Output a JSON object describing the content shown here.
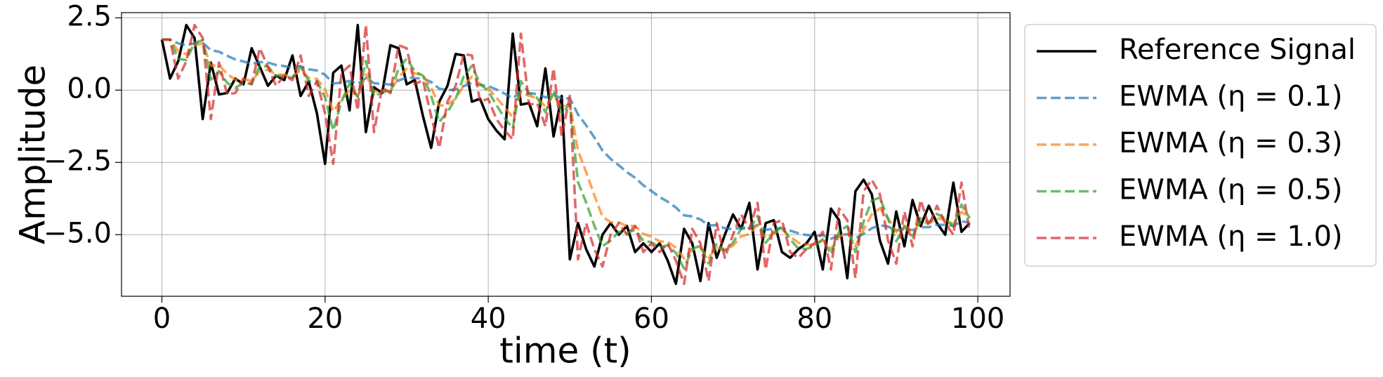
{
  "chart_data": {
    "type": "line",
    "xlabel": "time (t)",
    "ylabel": "Amplitude",
    "x": [
      0,
      1,
      2,
      3,
      4,
      5,
      6,
      7,
      8,
      9,
      10,
      11,
      12,
      13,
      14,
      15,
      16,
      17,
      18,
      19,
      20,
      21,
      22,
      23,
      24,
      25,
      26,
      27,
      28,
      29,
      30,
      31,
      32,
      33,
      34,
      35,
      36,
      37,
      38,
      39,
      40,
      41,
      42,
      43,
      44,
      45,
      46,
      47,
      48,
      49,
      50,
      51,
      52,
      53,
      54,
      55,
      56,
      57,
      58,
      59,
      60,
      61,
      62,
      63,
      64,
      65,
      66,
      67,
      68,
      69,
      70,
      71,
      72,
      73,
      74,
      75,
      76,
      77,
      78,
      79,
      80,
      81,
      82,
      83,
      84,
      85,
      86,
      87,
      88,
      89,
      90,
      91,
      92,
      93,
      94,
      95,
      96,
      97,
      98,
      99
    ],
    "series": [
      {
        "name": "Reference Signal",
        "color": "#000000",
        "linestyle": "solid",
        "values": [
          1.75,
          0.4,
          1.0,
          2.25,
          1.8,
          -1.0,
          0.95,
          -0.15,
          -0.1,
          0.4,
          0.2,
          1.45,
          0.8,
          0.15,
          0.5,
          0.35,
          1.2,
          -0.2,
          0.3,
          -0.8,
          -2.55,
          0.6,
          0.85,
          -0.7,
          2.25,
          -1.45,
          0.1,
          -0.1,
          1.55,
          1.45,
          0.2,
          0.35,
          -0.9,
          -2.0,
          -0.4,
          0.15,
          1.25,
          1.2,
          -0.4,
          -0.3,
          -1.0,
          -1.4,
          -1.7,
          1.95,
          -0.5,
          -0.45,
          -1.25,
          0.75,
          -1.6,
          -0.2,
          -5.85,
          -4.6,
          -5.5,
          -6.1,
          -5.0,
          -4.6,
          -5.0,
          -4.7,
          -5.6,
          -5.3,
          -5.6,
          -5.3,
          -5.9,
          -6.7,
          -4.8,
          -5.3,
          -6.6,
          -4.6,
          -5.8,
          -5.0,
          -4.3,
          -4.8,
          -3.9,
          -6.2,
          -4.6,
          -4.5,
          -5.6,
          -5.8,
          -5.5,
          -5.3,
          -4.9,
          -6.2,
          -4.1,
          -4.5,
          -6.5,
          -3.5,
          -3.1,
          -3.6,
          -5.2,
          -6.0,
          -4.2,
          -5.4,
          -3.8,
          -4.7,
          -4.0,
          -4.6,
          -5.0,
          -3.2,
          -4.9,
          -4.6
        ]
      },
      {
        "name": "EWMA (η = 0.1)",
        "color": "#1f77b4",
        "linestyle": "dashed",
        "values": [
          1.75,
          1.75,
          1.62,
          1.55,
          1.62,
          1.64,
          1.38,
          1.33,
          1.19,
          1.06,
          0.99,
          0.91,
          0.97,
          0.95,
          0.87,
          0.83,
          0.78,
          0.83,
          0.72,
          0.68,
          0.53,
          0.23,
          0.26,
          0.32,
          0.22,
          0.42,
          0.24,
          0.22,
          0.19,
          0.33,
          0.44,
          0.41,
          0.41,
          0.28,
          0.05,
          0.0,
          0.02,
          0.14,
          0.25,
          0.18,
          0.14,
          0.02,
          -0.12,
          -0.28,
          -0.06,
          -0.1,
          -0.14,
          -0.25,
          -0.15,
          -0.29,
          -0.28,
          -0.84,
          -1.22,
          -1.64,
          -2.09,
          -2.38,
          -2.6,
          -2.84,
          -3.03,
          -3.29,
          -3.49,
          -3.7,
          -3.86,
          -4.06,
          -4.33,
          -4.37,
          -4.47,
          -4.68,
          -4.67,
          -4.78,
          -4.81,
          -4.76,
          -4.76,
          -4.67,
          -4.83,
          -4.8,
          -4.77,
          -4.86,
          -4.95,
          -5.01,
          -5.04,
          -5.02,
          -5.14,
          -5.04,
          -4.98,
          -5.13,
          -4.97,
          -4.78,
          -4.67,
          -4.72,
          -4.85,
          -4.78,
          -4.84,
          -4.74,
          -4.74,
          -4.66,
          -4.66,
          -4.69,
          -4.54,
          -4.58
        ]
      },
      {
        "name": "EWMA (η = 0.3)",
        "color": "#ff7f0e",
        "linestyle": "dashed",
        "values": [
          1.75,
          1.75,
          1.35,
          1.24,
          1.54,
          1.62,
          0.84,
          0.87,
          0.56,
          0.36,
          0.38,
          0.32,
          0.66,
          0.7,
          0.54,
          0.53,
          0.47,
          0.69,
          0.42,
          0.39,
          0.03,
          -0.74,
          -0.34,
          0.02,
          -0.2,
          0.54,
          -0.06,
          -0.01,
          -0.04,
          0.44,
          0.74,
          0.58,
          0.51,
          0.09,
          -0.54,
          -0.5,
          -0.3,
          0.16,
          0.47,
          0.21,
          0.06,
          -0.26,
          -0.6,
          -0.93,
          -0.07,
          -0.2,
          -0.27,
          -0.57,
          -0.17,
          -0.6,
          -0.48,
          -2.09,
          -2.84,
          -3.64,
          -4.38,
          -4.57,
          -4.58,
          -4.7,
          -4.7,
          -4.97,
          -5.07,
          -5.23,
          -5.25,
          -5.45,
          -5.82,
          -5.52,
          -5.45,
          -5.8,
          -5.44,
          -5.55,
          -5.38,
          -5.06,
          -4.98,
          -4.66,
          -5.12,
          -4.96,
          -4.82,
          -5.06,
          -5.28,
          -5.35,
          -5.33,
          -5.2,
          -5.5,
          -5.08,
          -4.91,
          -5.39,
          -4.82,
          -4.3,
          -4.09,
          -4.43,
          -4.9,
          -4.69,
          -4.9,
          -4.57,
          -4.61,
          -4.43,
          -4.48,
          -4.64,
          -4.21,
          -4.41
        ]
      },
      {
        "name": "EWMA (η = 0.5)",
        "color": "#2ca02c",
        "linestyle": "dashed",
        "values": [
          1.75,
          1.75,
          1.08,
          1.04,
          1.64,
          1.72,
          0.36,
          0.66,
          0.25,
          0.08,
          0.24,
          0.22,
          0.84,
          0.82,
          0.48,
          0.49,
          0.42,
          0.81,
          0.31,
          0.3,
          -0.25,
          -1.4,
          -0.4,
          0.23,
          -0.24,
          1.01,
          -0.22,
          -0.06,
          -0.08,
          0.74,
          1.09,
          0.65,
          0.5,
          -0.2,
          -1.1,
          -0.75,
          -0.3,
          0.48,
          0.84,
          0.22,
          -0.04,
          -0.52,
          -0.96,
          -1.33,
          0.31,
          -0.1,
          -0.27,
          -0.76,
          -0.01,
          -0.8,
          -0.5,
          -3.18,
          -3.89,
          -4.69,
          -5.4,
          -5.2,
          -4.9,
          -4.95,
          -4.83,
          -5.21,
          -5.26,
          -5.43,
          -5.37,
          -5.63,
          -6.17,
          -5.48,
          -5.39,
          -6.0,
          -5.3,
          -5.55,
          -5.28,
          -4.79,
          -4.8,
          -4.35,
          -5.28,
          -4.94,
          -4.72,
          -5.16,
          -5.48,
          -5.49,
          -5.4,
          -5.15,
          -5.68,
          -4.89,
          -4.7,
          -5.6,
          -4.55,
          -3.83,
          -3.71,
          -4.46,
          -5.23,
          -4.72,
          -5.06,
          -4.43,
          -4.57,
          -4.28,
          -4.44,
          -4.72,
          -3.96,
          -4.43
        ]
      },
      {
        "name": "EWMA (η = 1.0)",
        "color": "#d62728",
        "linestyle": "dashed",
        "values": [
          1.75,
          1.75,
          0.4,
          1.0,
          2.25,
          1.8,
          -1.0,
          0.95,
          -0.15,
          -0.1,
          0.4,
          0.2,
          1.45,
          0.8,
          0.15,
          0.5,
          0.35,
          1.2,
          -0.2,
          0.3,
          -0.8,
          -2.55,
          0.6,
          0.85,
          -0.7,
          2.25,
          -1.45,
          0.1,
          -0.1,
          1.55,
          1.45,
          0.2,
          0.35,
          -0.9,
          -2.0,
          -0.4,
          0.15,
          1.25,
          1.2,
          -0.4,
          -0.3,
          -1.0,
          -1.4,
          -1.7,
          1.95,
          -0.5,
          -0.45,
          -1.25,
          0.75,
          -1.6,
          -0.2,
          -5.85,
          -4.6,
          -5.5,
          -6.1,
          -5.0,
          -4.6,
          -5.0,
          -4.7,
          -5.6,
          -5.3,
          -5.6,
          -5.3,
          -5.9,
          -6.7,
          -4.8,
          -5.3,
          -6.6,
          -4.6,
          -5.8,
          -5.0,
          -4.3,
          -4.8,
          -3.9,
          -6.2,
          -4.6,
          -4.5,
          -5.6,
          -5.8,
          -5.5,
          -5.3,
          -4.9,
          -6.2,
          -4.1,
          -4.5,
          -6.5,
          -3.5,
          -3.1,
          -3.6,
          -5.2,
          -6.0,
          -4.2,
          -5.4,
          -3.8,
          -4.7,
          -4.0,
          -4.6,
          -5.0,
          -3.2,
          -4.9
        ]
      }
    ],
    "xlim": [
      -4.95,
      103.95
    ],
    "ylim": [
      -7.13,
      2.68
    ],
    "xticks": [
      0,
      20,
      40,
      60,
      80,
      100
    ],
    "yticks": [
      {
        "value": -5,
        "label": "−5.0"
      },
      {
        "value": -2.5,
        "label": "−2.5"
      },
      {
        "value": 0,
        "label": "0.0"
      },
      2.5
    ],
    "grid": true,
    "legend": "outside right"
  }
}
